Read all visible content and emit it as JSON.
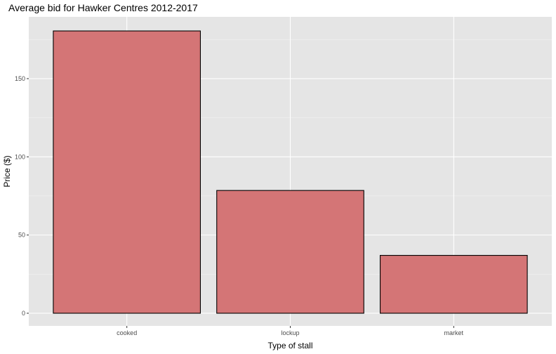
{
  "chart_data": {
    "type": "bar",
    "title": "Average bid for Hawker Centres 2012-2017",
    "xlabel": "Type of stall",
    "ylabel": "Price ($)",
    "categories": [
      "cooked",
      "lockup",
      "market"
    ],
    "values": [
      180.5,
      78.5,
      37
    ],
    "ylim": [
      -8.1,
      189.5
    ],
    "yticks": [
      0,
      50,
      100,
      150
    ],
    "grid": true,
    "bar_fill": "#d47576",
    "bar_stroke": "#000000",
    "panel_background": "#e5e5e5"
  }
}
